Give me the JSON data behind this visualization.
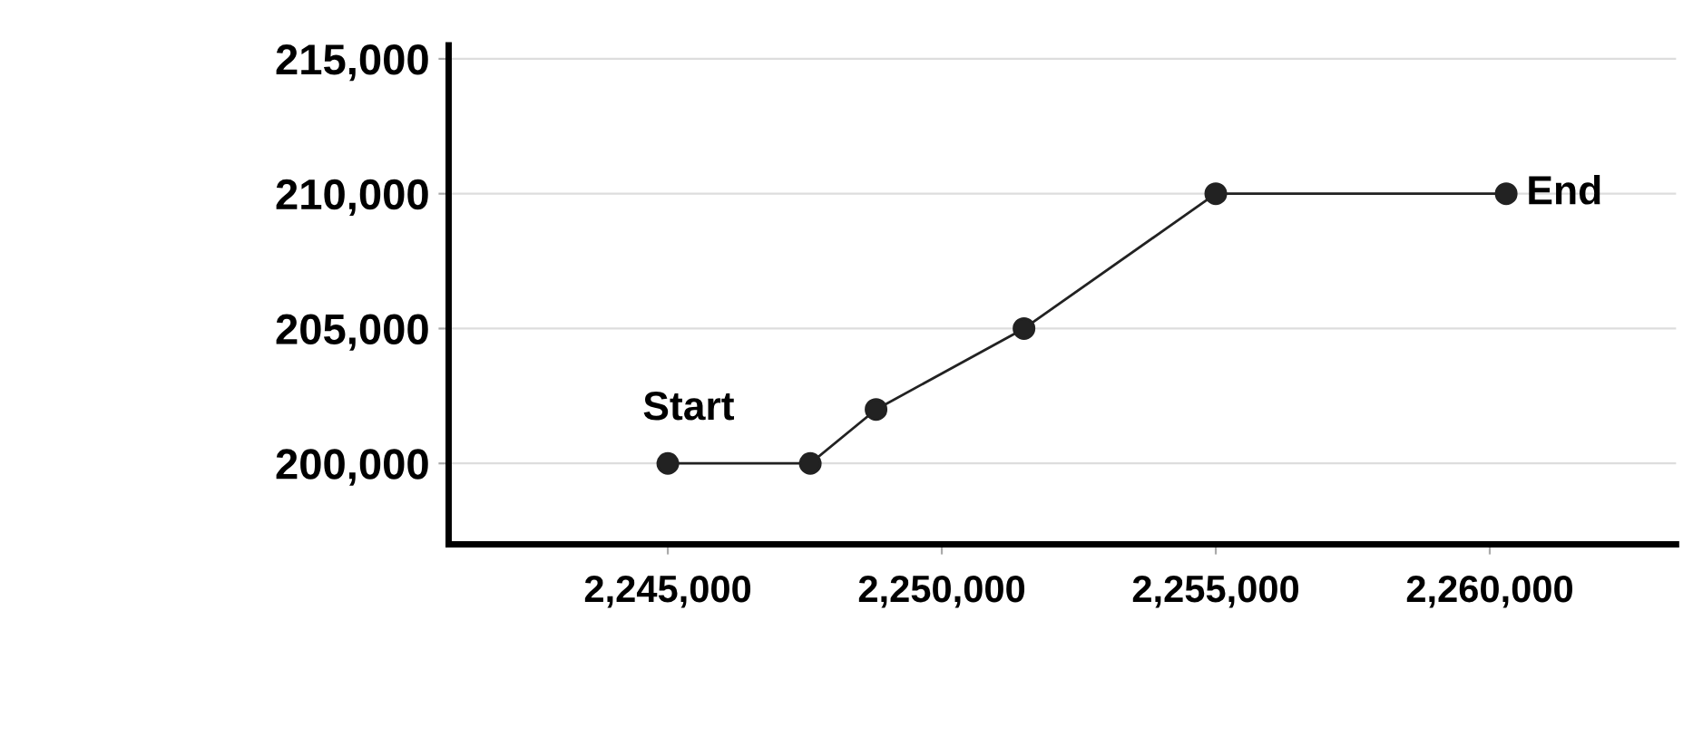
{
  "chart_data": {
    "type": "line",
    "x": [
      2245000,
      2247600,
      2248800,
      2251500,
      2255000,
      2260300
    ],
    "series": [
      {
        "color": "#222222",
        "values": [
          200000,
          200000,
          202000,
          205000,
          210000,
          210000
        ]
      }
    ],
    "xlim": [
      2241000,
      2263400
    ],
    "ylim": [
      197000,
      215500
    ],
    "xticks": [
      {
        "value": 2245000,
        "label": "2,245,000"
      },
      {
        "value": 2250000,
        "label": "2,250,000"
      },
      {
        "value": 2255000,
        "label": "2,255,000"
      },
      {
        "value": 2260000,
        "label": "2,260,000"
      }
    ],
    "yticks": [
      {
        "value": 200000,
        "label": "200,000"
      },
      {
        "value": 205000,
        "label": "205,000"
      },
      {
        "value": 210000,
        "label": "210,000"
      },
      {
        "value": 215000,
        "label": "215,000"
      }
    ],
    "annotations": [
      {
        "text": "Start",
        "x": 2245000,
        "y": 200000
      },
      {
        "text": "End",
        "x": 2260300,
        "y": 210000
      }
    ],
    "marker": "circle",
    "line_style": "solid",
    "grid": "y"
  }
}
